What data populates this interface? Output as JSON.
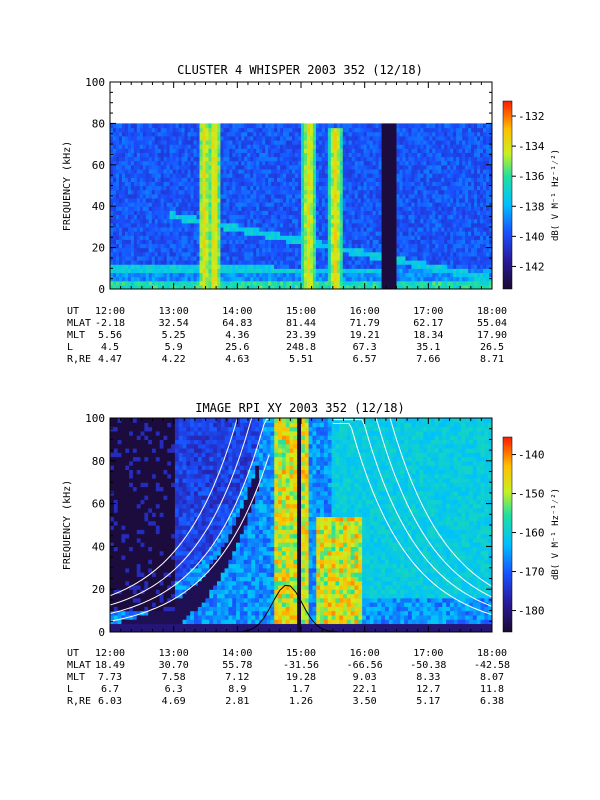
{
  "panels": [
    {
      "title": "CLUSTER 4 WHISPER 2003 352 (12/18)",
      "ylabel": "FREQUENCY (kHz)",
      "yticks": [
        "0",
        "20",
        "40",
        "60",
        "80",
        "100"
      ],
      "colorbar_label": "dB( V M⁻¹ Hz⁻¹⁄²)",
      "colorbar_ticks": [
        "-132",
        "-134",
        "-136",
        "-138",
        "-140",
        "-142"
      ],
      "ephem_labels": [
        "UT",
        "MLAT",
        "MLT",
        "L",
        "R,RE"
      ],
      "ephem": [
        [
          "12:00",
          "13:00",
          "14:00",
          "15:00",
          "16:00",
          "17:00",
          "18:00"
        ],
        [
          "-2.18",
          "32.54",
          "64.83",
          "81.44",
          "71.79",
          "62.17",
          "55.04"
        ],
        [
          "5.56",
          "5.25",
          "4.36",
          "23.39",
          "19.21",
          "18.34",
          "17.90"
        ],
        [
          "4.5",
          "5.9",
          "25.6",
          "248.8",
          "67.3",
          "35.1",
          "26.5"
        ],
        [
          "4.47",
          "4.22",
          "4.63",
          "5.51",
          "6.57",
          "7.66",
          "8.71"
        ]
      ]
    },
    {
      "title": "IMAGE RPI XY 2003 352 (12/18)",
      "ylabel": "FREQUENCY (kHz)",
      "yticks": [
        "0",
        "20",
        "40",
        "60",
        "80",
        "100"
      ],
      "colorbar_label": "dB( V M⁻¹ Hz⁻¹⁄²)",
      "colorbar_ticks": [
        "-140",
        "-150",
        "-160",
        "-170",
        "-180"
      ],
      "ephem_labels": [
        "UT",
        "MLAT",
        "MLT",
        "L",
        "R,RE"
      ],
      "ephem": [
        [
          "12:00",
          "13:00",
          "14:00",
          "15:00",
          "16:00",
          "17:00",
          "18:00"
        ],
        [
          "18.49",
          "30.70",
          "55.78",
          "-31.56",
          "-66.56",
          "-50.38",
          "-42.58"
        ],
        [
          "7.73",
          "7.58",
          "7.12",
          "19.28",
          "9.03",
          "8.33",
          "8.07"
        ],
        [
          "6.7",
          "6.3",
          "8.9",
          "1.7",
          "22.1",
          "12.7",
          "11.8"
        ],
        [
          "6.03",
          "4.69",
          "2.81",
          "1.26",
          "3.50",
          "5.17",
          "6.38"
        ]
      ]
    }
  ],
  "chart_data": [
    {
      "type": "heatmap",
      "title": "CLUSTER 4 WHISPER 2003 352 (12/18)",
      "ylabel": "FREQUENCY (kHz)",
      "x_range": [
        "12:00",
        "18:00"
      ],
      "ylim": [
        0,
        100
      ],
      "data_ylim": [
        0,
        80
      ],
      "colorbar_range_dB": [
        -144,
        -131
      ],
      "features": [
        {
          "kind": "vertical_burst",
          "ut_start": "13:27",
          "ut_end": "13:31",
          "f_max_kHz": 80
        },
        {
          "kind": "vertical_burst",
          "ut_start": "13:36",
          "ut_end": "13:41",
          "f_max_kHz": 80
        },
        {
          "kind": "vertical_burst",
          "ut_start": "15:05",
          "ut_end": "15:10",
          "f_max_kHz": 80
        },
        {
          "kind": "vertical_burst",
          "ut_start": "15:30",
          "ut_end": "15:35",
          "f_max_kHz": 78
        },
        {
          "kind": "data_gap",
          "ut_start": "16:15",
          "ut_end": "16:30"
        },
        {
          "kind": "emission_line",
          "from": [
            "12:55",
            36
          ],
          "to": [
            "18:00",
            5
          ]
        },
        {
          "kind": "emission_line",
          "from": [
            "12:00",
            10
          ],
          "to": [
            "16:20",
            9
          ]
        }
      ]
    },
    {
      "type": "heatmap",
      "title": "IMAGE RPI XY 2003 352 (12/18)",
      "ylabel": "FREQUENCY (kHz)",
      "x_range": [
        "12:00",
        "18:00"
      ],
      "ylim": [
        0,
        100
      ],
      "colorbar_range_dB": [
        -185,
        -135
      ],
      "features": [
        {
          "kind": "intense_band",
          "ut_start": "14:40",
          "ut_end": "15:00",
          "f_range_kHz": [
            5,
            100
          ]
        },
        {
          "kind": "intense_band",
          "ut_start": "15:20",
          "ut_end": "15:50",
          "f_range_kHz": [
            5,
            55
          ]
        },
        {
          "kind": "data_gap",
          "ut_start": "14:55",
          "ut_end": "15:00"
        }
      ]
    }
  ]
}
